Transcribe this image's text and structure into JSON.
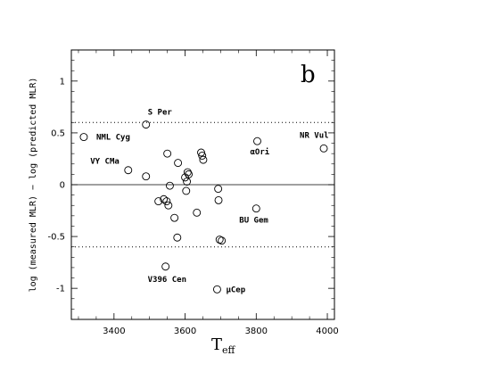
{
  "chart_data": {
    "type": "scatter",
    "panel_label": "b",
    "xlabel": "T",
    "xlabel_sub": "eff",
    "ylabel": "log (measured MLR) − log (predicted MLR)",
    "xlim": [
      3280,
      4020
    ],
    "ylim": [
      -1.3,
      1.3
    ],
    "x_ticks": [
      3400,
      3600,
      3800,
      4000
    ],
    "y_ticks": [
      -1,
      -0.5,
      0,
      0.5,
      1
    ],
    "reference_lines": [
      {
        "y": 0,
        "style": "solid"
      },
      {
        "y": 0.6,
        "style": "dotted"
      },
      {
        "y": -0.6,
        "style": "dotted"
      }
    ],
    "points": [
      {
        "x": 3315,
        "y": 0.46,
        "label": "NML Cyg"
      },
      {
        "x": 3440,
        "y": 0.14,
        "label": "VY CMa"
      },
      {
        "x": 3490,
        "y": 0.58,
        "label": "S Per"
      },
      {
        "x": 3490,
        "y": 0.08,
        "label": ""
      },
      {
        "x": 3525,
        "y": -0.16,
        "label": ""
      },
      {
        "x": 3540,
        "y": -0.14,
        "label": ""
      },
      {
        "x": 3545,
        "y": -0.79,
        "label": "V396 Cen"
      },
      {
        "x": 3548,
        "y": -0.16,
        "label": ""
      },
      {
        "x": 3550,
        "y": 0.3,
        "label": ""
      },
      {
        "x": 3553,
        "y": -0.2,
        "label": ""
      },
      {
        "x": 3557,
        "y": -0.01,
        "label": ""
      },
      {
        "x": 3570,
        "y": -0.32,
        "label": ""
      },
      {
        "x": 3578,
        "y": -0.51,
        "label": ""
      },
      {
        "x": 3580,
        "y": 0.21,
        "label": ""
      },
      {
        "x": 3600,
        "y": 0.07,
        "label": ""
      },
      {
        "x": 3603,
        "y": -0.06,
        "label": ""
      },
      {
        "x": 3605,
        "y": 0.03,
        "label": ""
      },
      {
        "x": 3607,
        "y": 0.12,
        "label": ""
      },
      {
        "x": 3610,
        "y": 0.1,
        "label": ""
      },
      {
        "x": 3633,
        "y": -0.27,
        "label": ""
      },
      {
        "x": 3645,
        "y": 0.31,
        "label": ""
      },
      {
        "x": 3648,
        "y": 0.28,
        "label": ""
      },
      {
        "x": 3651,
        "y": 0.24,
        "label": ""
      },
      {
        "x": 3690,
        "y": -1.01,
        "label": "μCep"
      },
      {
        "x": 3693,
        "y": -0.04,
        "label": ""
      },
      {
        "x": 3694,
        "y": -0.15,
        "label": ""
      },
      {
        "x": 3697,
        "y": -0.53,
        "label": ""
      },
      {
        "x": 3703,
        "y": -0.54,
        "label": ""
      },
      {
        "x": 3800,
        "y": -0.23,
        "label": "BU Gem"
      },
      {
        "x": 3803,
        "y": 0.42,
        "label": "αOri"
      },
      {
        "x": 3990,
        "y": 0.35,
        "label": "NR Vul"
      }
    ]
  }
}
